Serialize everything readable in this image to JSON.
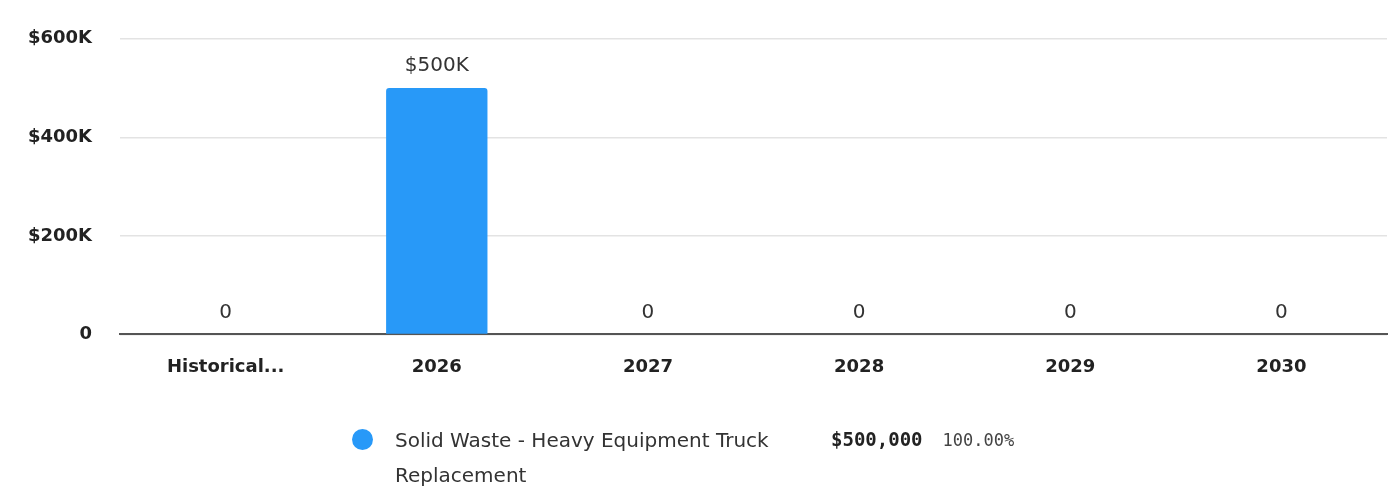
{
  "chart_data": {
    "type": "bar",
    "categories": [
      "Historical...",
      "2026",
      "2027",
      "2028",
      "2029",
      "2030"
    ],
    "series": [
      {
        "name": "Solid Waste - Heavy Equipment Truck Replacement",
        "color": "#2899f8",
        "values": [
          0,
          500000,
          0,
          0,
          0,
          0
        ],
        "value_labels": [
          "0",
          "$500K",
          "0",
          "0",
          "0",
          "0"
        ]
      }
    ],
    "ylim": [
      0,
      600000
    ],
    "yticks": [
      {
        "value": 0,
        "label": "0"
      },
      {
        "value": 200000,
        "label": "$200K"
      },
      {
        "value": 400000,
        "label": "$400K"
      },
      {
        "value": 600000,
        "label": "$600K"
      }
    ],
    "grid": "y",
    "legend": "bottom",
    "annotations": [
      "$500,000",
      "100.00%"
    ]
  }
}
